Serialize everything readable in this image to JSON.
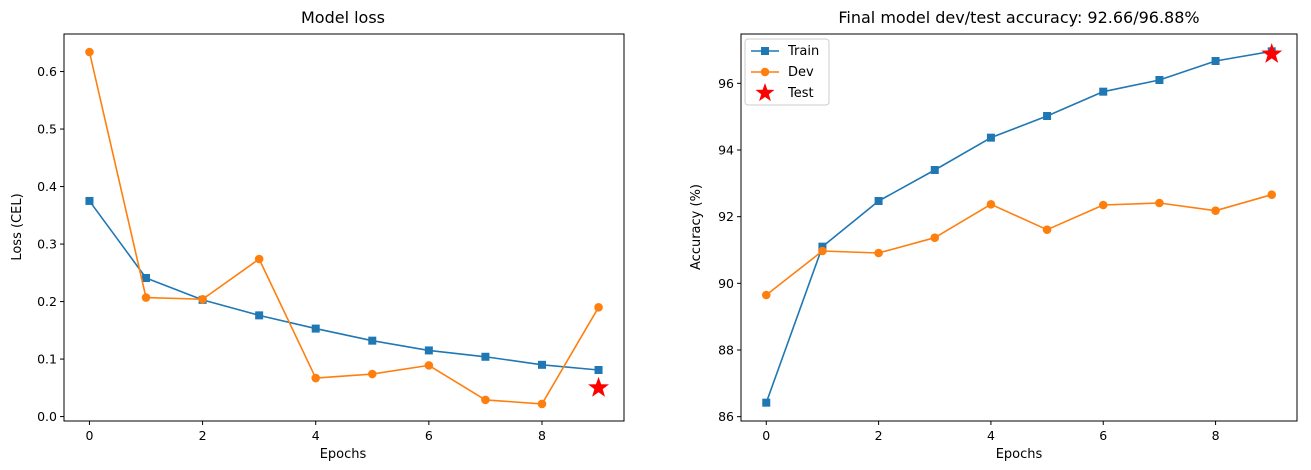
{
  "colors": {
    "train": "#1f77b4",
    "dev": "#ff7f0e",
    "test": "#ff0000"
  },
  "chart_data": [
    {
      "type": "line",
      "title": "Model loss",
      "xlabel": "Epochs",
      "ylabel": "Loss (CEL)",
      "xlim": [
        -0.45,
        9.45
      ],
      "ylim": [
        -0.0077,
        0.6653
      ],
      "xticks": [
        0,
        2,
        4,
        6,
        8
      ],
      "yticks": [
        0.0,
        0.1,
        0.2,
        0.3,
        0.4,
        0.5,
        0.6
      ],
      "ytick_labels": [
        "0.0",
        "0.1",
        "0.2",
        "0.3",
        "0.4",
        "0.5",
        "0.6"
      ],
      "grid": false,
      "legend": "",
      "x": [
        0,
        1,
        2,
        3,
        4,
        5,
        6,
        7,
        8,
        9
      ],
      "series": [
        {
          "key": "train",
          "marker": "square",
          "values": [
            0.375,
            0.241,
            0.203,
            0.176,
            0.153,
            0.132,
            0.115,
            0.104,
            0.09,
            0.081
          ]
        },
        {
          "key": "dev",
          "marker": "circle",
          "values": [
            0.634,
            0.207,
            0.204,
            0.274,
            0.067,
            0.074,
            0.089,
            0.029,
            0.022,
            0.19
          ]
        }
      ],
      "points": [
        {
          "key": "test",
          "marker": "star",
          "x": 9,
          "y": 0.05
        }
      ]
    },
    {
      "type": "line",
      "title": "Final model dev/test accuracy: 92.66/96.88%",
      "xlabel": "Epochs",
      "ylabel": "Accuracy (%)",
      "xlim": [
        -0.45,
        9.45
      ],
      "ylim": [
        85.87,
        97.48
      ],
      "xticks": [
        0,
        2,
        4,
        6,
        8
      ],
      "yticks": [
        86,
        88,
        90,
        92,
        94,
        96
      ],
      "ytick_labels": [
        "86",
        "88",
        "90",
        "92",
        "94",
        "96"
      ],
      "grid": false,
      "legend": "top-left",
      "x": [
        0,
        1,
        2,
        3,
        4,
        5,
        6,
        7,
        8,
        9
      ],
      "series": [
        {
          "key": "train",
          "name": "Train",
          "marker": "square",
          "values": [
            86.42,
            91.1,
            92.47,
            93.4,
            94.37,
            95.02,
            95.75,
            96.1,
            96.67,
            96.96
          ]
        },
        {
          "key": "dev",
          "name": "Dev",
          "marker": "circle",
          "values": [
            89.65,
            90.97,
            90.91,
            91.37,
            92.37,
            91.61,
            92.35,
            92.41,
            92.18,
            92.66
          ]
        }
      ],
      "points": [
        {
          "key": "test",
          "name": "Test",
          "marker": "star",
          "x": 9,
          "y": 96.88
        }
      ]
    }
  ]
}
